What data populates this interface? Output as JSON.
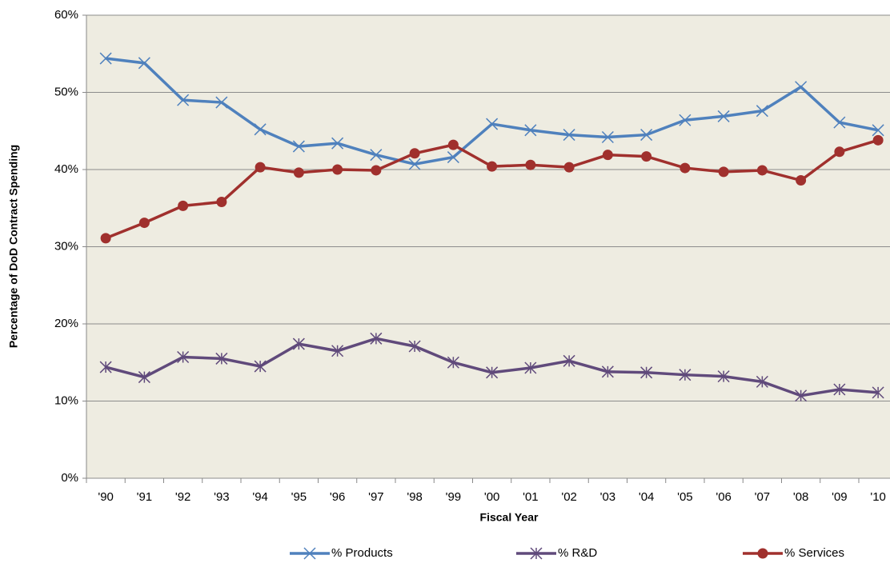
{
  "chart_data": {
    "type": "line",
    "x_label": "Fiscal Year",
    "y_label": "Percentage of DoD Contract Spending",
    "categories": [
      "'90",
      "'91",
      "'92",
      "'93",
      "'94",
      "'95",
      "'96",
      "'97",
      "'98",
      "'99",
      "'00",
      "'01",
      "'02",
      "'03",
      "'04",
      "'05",
      "'06",
      "'07",
      "'08",
      "'09",
      "'10"
    ],
    "series": [
      {
        "name": "% Products",
        "color": "#4f81bd",
        "marker": "x",
        "values": [
          54.4,
          53.8,
          49.0,
          48.7,
          45.2,
          43.0,
          43.4,
          41.9,
          40.7,
          41.6,
          45.9,
          45.1,
          44.5,
          44.2,
          44.5,
          46.4,
          46.9,
          47.6,
          50.7,
          46.1,
          45.1
        ]
      },
      {
        "name": "% R&D",
        "color": "#604a7b",
        "marker": "asterisk",
        "values": [
          14.4,
          13.1,
          15.7,
          15.5,
          14.5,
          17.4,
          16.5,
          18.1,
          17.1,
          15.0,
          13.7,
          14.3,
          15.2,
          13.8,
          13.7,
          13.4,
          13.2,
          12.5,
          10.7,
          11.5,
          11.1
        ]
      },
      {
        "name": "% Services",
        "color": "#a0302d",
        "marker": "circle",
        "values": [
          31.1,
          33.1,
          35.3,
          35.8,
          40.3,
          39.6,
          40.0,
          39.9,
          42.1,
          43.2,
          40.4,
          40.6,
          40.3,
          41.9,
          41.7,
          40.2,
          39.7,
          39.9,
          38.6,
          42.3,
          43.8
        ]
      }
    ],
    "ylim": [
      0,
      60
    ],
    "yticks": [
      {
        "value": 0,
        "label": "0%"
      },
      {
        "value": 10,
        "label": "10%"
      },
      {
        "value": 20,
        "label": "20%"
      },
      {
        "value": 30,
        "label": "30%"
      },
      {
        "value": 40,
        "label": "40%"
      },
      {
        "value": 50,
        "label": "50%"
      },
      {
        "value": 60,
        "label": "60%"
      }
    ],
    "grid": true,
    "legend": "bottom",
    "background": "#eeece1"
  }
}
